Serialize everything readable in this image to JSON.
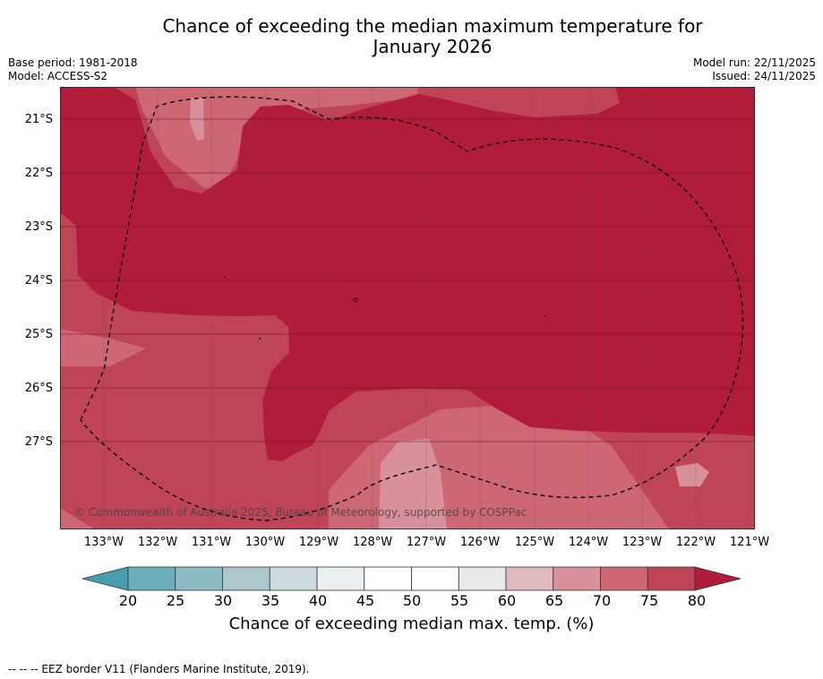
{
  "title_line1": "Chance of exceeding the median maximum temperature for",
  "title_line2": "January 2026",
  "base_period": "Base period: 1981-2018",
  "model": "Model: ACCESS-S2",
  "model_run": "Model run: 22/11/2025",
  "issued": "Issued: 24/11/2025",
  "lat_labels": [
    "21°S",
    "22°S",
    "23°S",
    "24°S",
    "25°S",
    "26°S",
    "27°S"
  ],
  "lon_labels": [
    "133°W",
    "132°W",
    "131°W",
    "130°W",
    "129°W",
    "128°W",
    "127°W",
    "126°W",
    "125°W",
    "124°W",
    "123°W",
    "122°W",
    "121°W"
  ],
  "copyright": "© Commonwealth of Australia 2025, Bureau of Meteorology, supported by COSPPac",
  "colorbar": {
    "ticks": [
      "20",
      "25",
      "30",
      "35",
      "40",
      "45",
      "50",
      "55",
      "60",
      "65",
      "70",
      "75",
      "80"
    ],
    "title": "Chance of exceeding median max. temp. (%)",
    "colors": [
      "#459fae",
      "#6caebc",
      "#8dbac4",
      "#aac8cd",
      "#cbdbdf",
      "#eaf0f2",
      "#ffffff",
      "#ffffff",
      "#e9e9e9",
      "#e0b8be",
      "#d8909a",
      "#cd6774",
      "#bf4556",
      "#b01c39"
    ]
  },
  "footnote": "--  --  -- EEZ border V11 (Flanders Marine Institute, 2019)."
}
